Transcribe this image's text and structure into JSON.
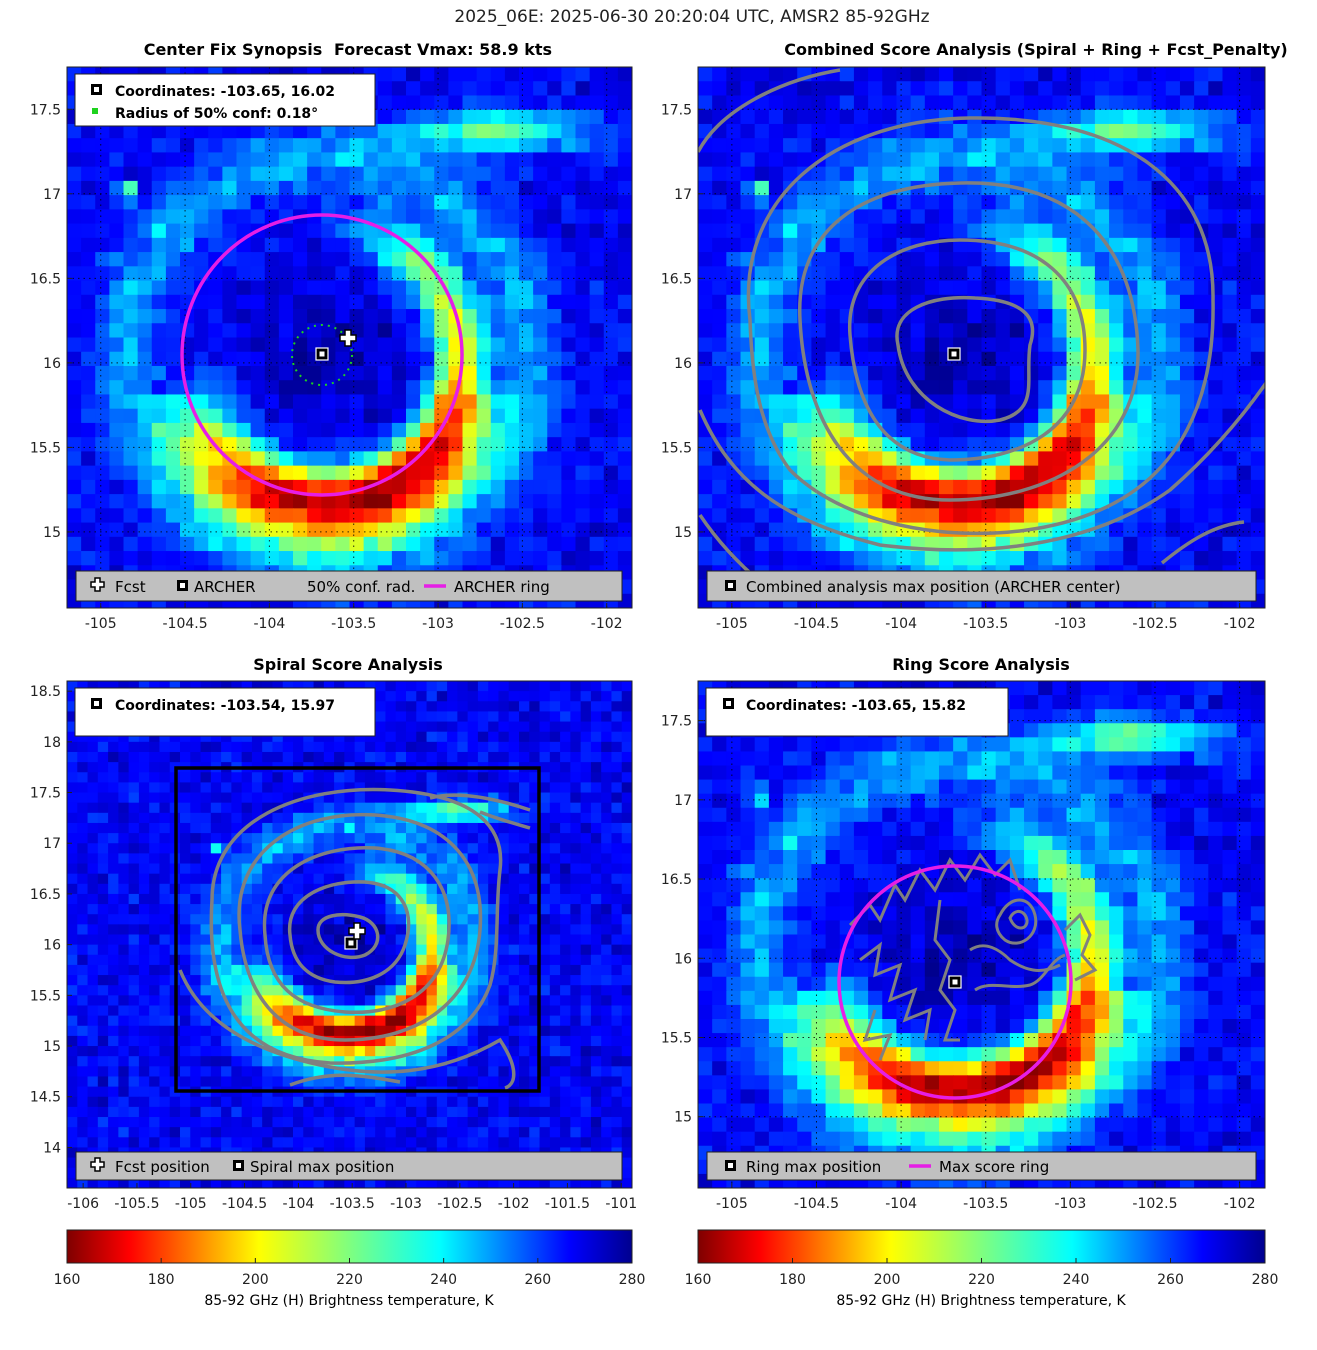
{
  "suptitle": "2025_06E: 2025-06-30 20:20:04 UTC, AMSR2 85-92GHz",
  "colors": {
    "ring": "#e61ee6",
    "contour": "#808080",
    "confidence": "#1ed21e",
    "box": "#000000"
  },
  "panels": {
    "synopsis": {
      "title_left": "Center Fix Synopsis",
      "title_right": "Forecast Vmax: 58.9 kts",
      "info_line1": "Coordinates: -103.65, 16.02",
      "info_line2": "Radius of 50% conf: 0.18°",
      "legend": {
        "fcst": "Fcst",
        "archer": "ARCHER",
        "conf": "50% conf. rad.",
        "ring": "ARCHER ring"
      }
    },
    "combined": {
      "title": "Combined Score Analysis (Spiral + Ring + Fcst_Penalty)",
      "legend": {
        "max": "Combined analysis max position (ARCHER center)"
      }
    },
    "spiral": {
      "title": "Spiral Score Analysis",
      "info_line1": "Coordinates: -103.54, 15.97",
      "legend": {
        "fcst": "Fcst position",
        "max": "Spiral max position"
      }
    },
    "ring": {
      "title": "Ring Score Analysis",
      "info_line1": "Coordinates: -103.65, 15.82",
      "legend": {
        "max": "Ring max position",
        "ring": "Max score ring"
      }
    }
  },
  "colorbar": {
    "label": "85-92 GHz (H) Brightness temperature, K",
    "ticks": [
      "160",
      "180",
      "200",
      "220",
      "240",
      "260",
      "280"
    ],
    "min": 160,
    "max": 280,
    "colormap": "jet_reversed"
  },
  "chart_data": [
    {
      "type": "heatmap",
      "id": "synopsis",
      "xlim": [
        -105.2,
        -101.85
      ],
      "ylim": [
        14.55,
        17.75
      ],
      "xticks": [
        "-105",
        "-104.5",
        "-104",
        "-103.5",
        "-103",
        "-102.5",
        "-102"
      ],
      "yticks": [
        "15",
        "15.5",
        "16",
        "16.5",
        "17",
        "17.5"
      ],
      "archer_center": [
        -103.65,
        16.02
      ],
      "fcst_position": [
        -103.5,
        16.14
      ],
      "conf_radius_deg": 0.18,
      "ring_radius_deg": 0.83
    },
    {
      "type": "heatmap",
      "id": "combined",
      "xlim": [
        -105.2,
        -101.85
      ],
      "ylim": [
        14.55,
        17.75
      ],
      "xticks": [
        "-105",
        "-104.5",
        "-104",
        "-103.5",
        "-103",
        "-102.5",
        "-102"
      ],
      "yticks": [
        "15",
        "15.5",
        "16",
        "16.5",
        "17",
        "17.5"
      ],
      "max_position": [
        -103.65,
        16.02
      ]
    },
    {
      "type": "heatmap",
      "id": "spiral",
      "xlim": [
        -106.15,
        -100.9
      ],
      "ylim": [
        13.6,
        18.6
      ],
      "xticks": [
        "-106",
        "-105.5",
        "-105",
        "-104.5",
        "-104",
        "-103.5",
        "-103",
        "-102.5",
        "-102",
        "-101.5",
        "-101"
      ],
      "yticks": [
        "14",
        "14.5",
        "15",
        "15.5",
        "16",
        "16.5",
        "17",
        "17.5",
        "18",
        "18.5"
      ],
      "max_position": [
        -103.54,
        15.97
      ],
      "fcst_position": [
        -103.5,
        16.1
      ],
      "search_box": [
        -105.2,
        14.5,
        -101.8,
        17.73
      ]
    },
    {
      "type": "heatmap",
      "id": "ring",
      "xlim": [
        -105.2,
        -101.85
      ],
      "ylim": [
        14.55,
        17.75
      ],
      "xticks": [
        "-105",
        "-104.5",
        "-104",
        "-103.5",
        "-103",
        "-102.5",
        "-102"
      ],
      "yticks": [
        "15",
        "15.5",
        "16",
        "16.5",
        "17",
        "17.5"
      ],
      "max_position": [
        -103.65,
        15.82
      ],
      "ring_radius_deg": 0.68
    }
  ]
}
